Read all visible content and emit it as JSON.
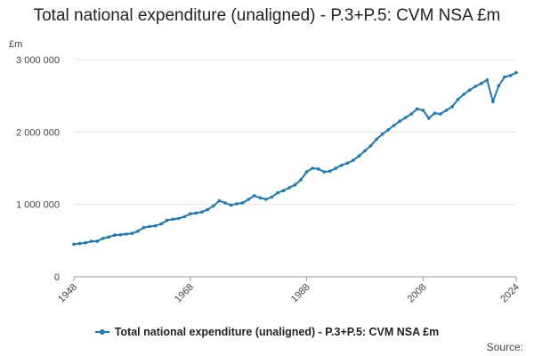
{
  "chart_data": {
    "type": "line",
    "title": "Total national expenditure (unaligned) - P.3+P.5: CVM NSA £m",
    "unit_label": "£m",
    "xlabel": "",
    "ylabel": "£m",
    "xlim": [
      1948,
      2024
    ],
    "ylim": [
      0,
      3000000
    ],
    "y_ticks": [
      0,
      1000000,
      2000000,
      3000000
    ],
    "y_tick_labels": [
      "0",
      "1 000 000",
      "2 000 000",
      "3 000 000"
    ],
    "x_ticks": [
      1948,
      1968,
      1988,
      2008,
      2024
    ],
    "x_tick_labels": [
      "1948",
      "1968",
      "1988",
      "2008",
      "2024"
    ],
    "grid": true,
    "legend_position": "bottom",
    "series": [
      {
        "name": "Total national expenditure (unaligned) - P.3+P.5: CVM NSA £m",
        "color": "#1c7ab8",
        "x": [
          1948,
          1949,
          1950,
          1951,
          1952,
          1953,
          1954,
          1955,
          1956,
          1957,
          1958,
          1959,
          1960,
          1961,
          1962,
          1963,
          1964,
          1965,
          1966,
          1967,
          1968,
          1969,
          1970,
          1971,
          1972,
          1973,
          1974,
          1975,
          1976,
          1977,
          1978,
          1979,
          1980,
          1981,
          1982,
          1983,
          1984,
          1985,
          1986,
          1987,
          1988,
          1989,
          1990,
          1991,
          1992,
          1993,
          1994,
          1995,
          1996,
          1997,
          1998,
          1999,
          2000,
          2001,
          2002,
          2003,
          2004,
          2005,
          2006,
          2007,
          2008,
          2009,
          2010,
          2011,
          2012,
          2013,
          2014,
          2015,
          2016,
          2017,
          2018,
          2019,
          2020,
          2021,
          2022,
          2023,
          2024
        ],
        "values": [
          450000,
          460000,
          470000,
          490000,
          490000,
          530000,
          550000,
          575000,
          580000,
          590000,
          600000,
          630000,
          680000,
          695000,
          705000,
          730000,
          780000,
          795000,
          805000,
          830000,
          870000,
          880000,
          895000,
          930000,
          980000,
          1050000,
          1020000,
          990000,
          1010000,
          1020000,
          1070000,
          1120000,
          1090000,
          1070000,
          1100000,
          1160000,
          1190000,
          1230000,
          1270000,
          1340000,
          1450000,
          1500000,
          1490000,
          1450000,
          1460000,
          1500000,
          1540000,
          1570000,
          1610000,
          1670000,
          1740000,
          1810000,
          1900000,
          1970000,
          2030000,
          2090000,
          2150000,
          2200000,
          2250000,
          2320000,
          2300000,
          2190000,
          2260000,
          2250000,
          2300000,
          2350000,
          2450000,
          2520000,
          2580000,
          2630000,
          2670000,
          2720000,
          2420000,
          2640000,
          2760000,
          2780000,
          2820000
        ]
      }
    ]
  },
  "legend": {
    "label": "Total national expenditure (unaligned) - P.3+P.5: CVM NSA £m"
  },
  "source_label": "Source:"
}
